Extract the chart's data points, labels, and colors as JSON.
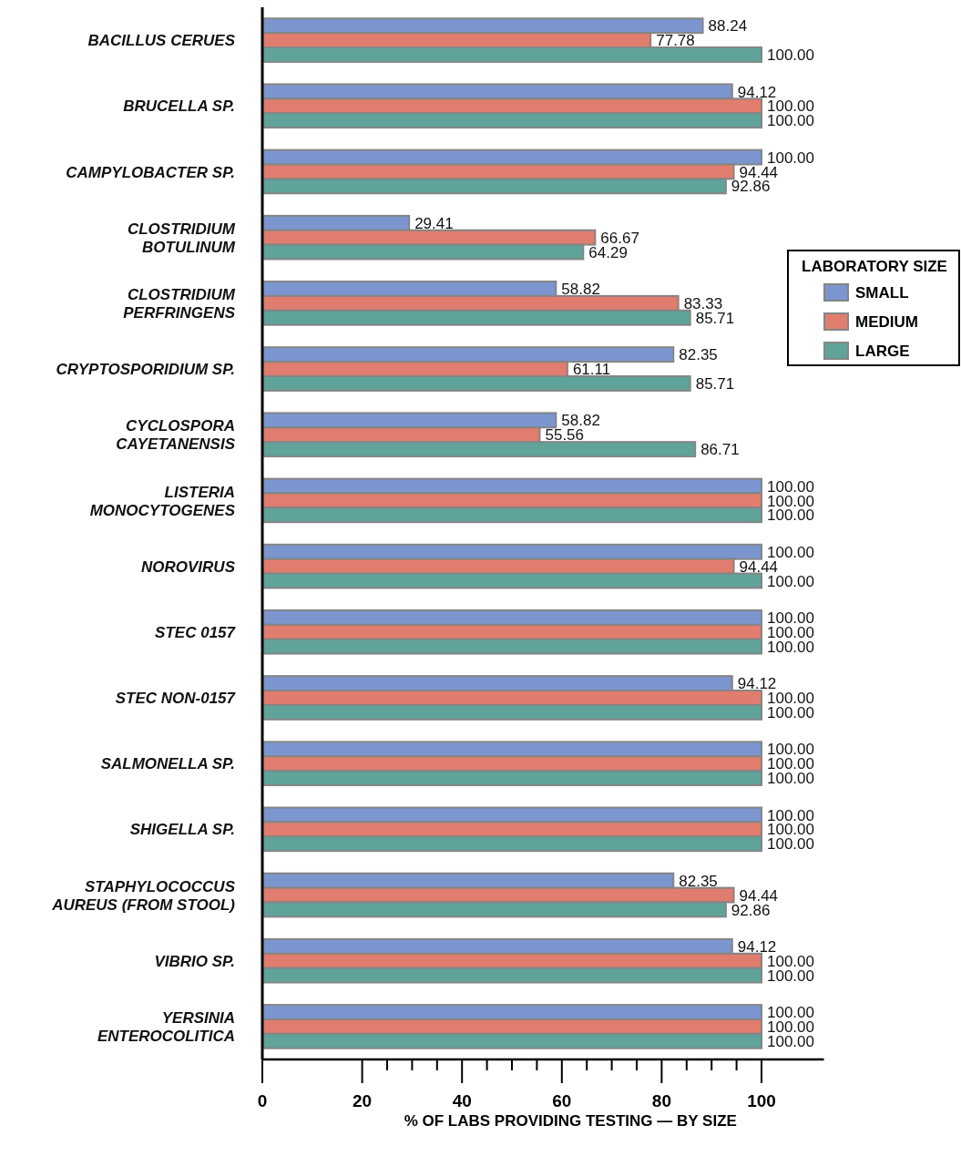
{
  "chart_data": {
    "type": "bar",
    "orientation": "horizontal",
    "xlabel": "% OF LABS PROVIDING TESTING — BY SIZE",
    "legend_title": "LABORATORY SIZE",
    "legend": "right",
    "grid": false,
    "categories": [
      "BACILLUS CERUES",
      "BRUCELLA SP.",
      "CAMPYLOBACTER SP.",
      "CLOSTRIDIUM\nBOTULINUM",
      "CLOSTRIDIUM\nPERFRINGENS",
      "CRYPTOSPORIDIUM SP.",
      "CYCLOSPORA\nCAYETANENSIS",
      "LISTERIA\nMONOCYTOGENES",
      "NOROVIRUS",
      "STEC 0157",
      "STEC NON-0157",
      "SALMONELLA SP.",
      "SHIGELLA SP.",
      "STAPHYLOCOCCUS\nAUREUS (FROM STOOL)",
      "VIBRIO SP.",
      "YERSINIA\nENTEROCOLITICA"
    ],
    "xlim": [
      0,
      112.5
    ],
    "xticks": [
      0,
      20,
      {
        "value": 25,
        "label": null
      },
      {
        "value": 30,
        "label": null
      },
      {
        "value": 35,
        "label": null
      },
      40,
      {
        "value": 45,
        "label": null
      },
      {
        "value": 50,
        "label": null
      },
      {
        "value": 55,
        "label": null
      },
      60,
      {
        "value": 65,
        "label": null
      },
      {
        "value": 70,
        "label": null
      },
      {
        "value": 75,
        "label": null
      },
      80,
      {
        "value": 85,
        "label": null
      },
      {
        "value": 90,
        "label": null
      },
      {
        "value": 95,
        "label": null
      },
      100
    ],
    "series": [
      {
        "name": "SMALL",
        "color": "#7b96cf",
        "values": [
          88.24,
          94.12,
          100,
          29.41,
          58.82,
          82.35,
          58.82,
          100,
          100,
          100,
          94.12,
          100,
          100,
          82.35,
          94.12,
          100
        ],
        "value_labels": [
          "88.24",
          "94.12",
          "100.00",
          "29.41",
          "58.82",
          "82.35",
          "58.82",
          "100.00",
          "100.00",
          "100.00",
          "94.12",
          "100.00",
          "100.00",
          "82.35",
          "94.12",
          "100.00"
        ]
      },
      {
        "name": "MEDIUM",
        "color": "#e07d6f",
        "values": [
          77.78,
          100,
          94.44,
          66.67,
          83.33,
          61.11,
          55.56,
          100,
          94.44,
          100,
          100,
          100,
          100,
          94.44,
          100,
          100
        ],
        "value_labels": [
          "77.78",
          "100.00",
          "94.44",
          "66.67",
          "83.33",
          "61.11",
          "55.56",
          "100.00",
          "94.44",
          "100.00",
          "100.00",
          "100.00",
          "100.00",
          "94.44",
          "100.00",
          "100.00"
        ]
      },
      {
        "name": "LARGE",
        "color": "#5fa39a",
        "values": [
          100,
          100,
          92.86,
          64.29,
          85.71,
          85.71,
          86.71,
          100,
          100,
          100,
          100,
          100,
          100,
          92.86,
          100,
          100
        ],
        "value_labels": [
          "100.00",
          "100.00",
          "92.86",
          "64.29",
          "85.71",
          "85.71",
          "86.71",
          "100.00",
          "100.00",
          "100.00",
          "100.00",
          "100.00",
          "100.00",
          "92.86",
          "100.00",
          "100.00"
        ]
      }
    ]
  }
}
